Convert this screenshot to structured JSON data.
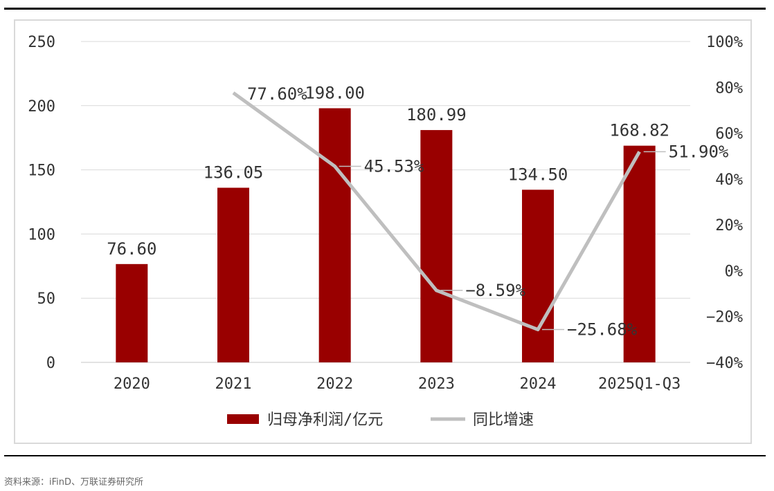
{
  "source_note": "资料来源：iFinD、万联证券研究所",
  "chart_data": {
    "type": "bar",
    "categories": [
      "2020",
      "2021",
      "2022",
      "2023",
      "2024",
      "2025Q1-Q3"
    ],
    "series": [
      {
        "name": "归母净利润/亿元",
        "type": "bar",
        "axis": "left",
        "color": "#990000",
        "values": [
          76.6,
          136.05,
          198.0,
          180.99,
          134.5,
          168.82
        ],
        "labels": [
          "76.60",
          "136.05",
          "198.00",
          "180.99",
          "134.50",
          "168.82"
        ]
      },
      {
        "name": "同比增速",
        "type": "line",
        "axis": "right",
        "color": "#bfbfbf",
        "values": [
          null,
          77.6,
          45.53,
          -8.59,
          -25.68,
          51.9
        ],
        "labels": [
          null,
          "77.60%",
          "45.53%",
          "-8.59%",
          "-25.68%",
          "51.90%"
        ]
      }
    ],
    "y_left": {
      "min": 0,
      "max": 250,
      "ticks": [
        "0",
        "50",
        "100",
        "150",
        "200",
        "250"
      ]
    },
    "y_right": {
      "min": -40,
      "max": 100,
      "ticks": [
        "-40%",
        "-20%",
        "0%",
        "20%",
        "40%",
        "60%",
        "80%",
        "100%"
      ]
    },
    "grid": true,
    "legend": "bottom"
  }
}
